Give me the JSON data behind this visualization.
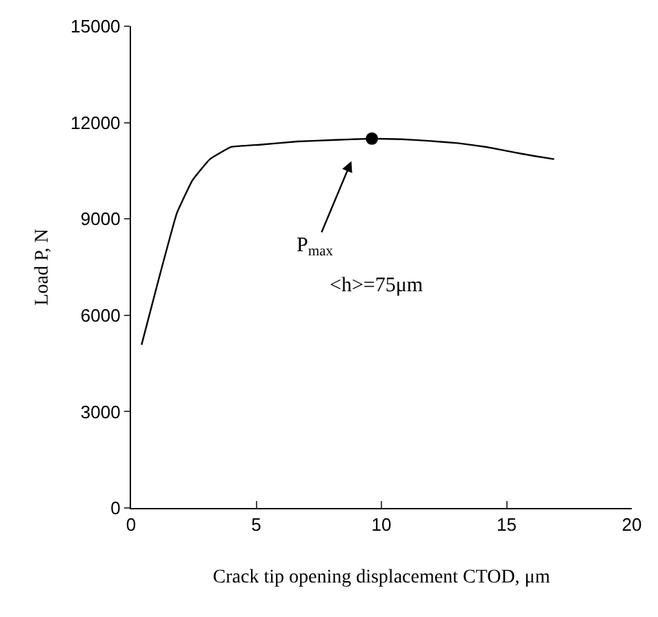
{
  "chart_data": {
    "type": "line",
    "xlabel": "Crack tip opening displacement CTOD, μm",
    "ylabel": "Load P, N",
    "series": [
      {
        "color": "#000000",
        "x": [
          0.42,
          1.08,
          1.83,
          2.45,
          3.15,
          4.0,
          5.13,
          6.64,
          8.15,
          9.62,
          10.8,
          11.9,
          13.05,
          14.19,
          15.32,
          16.1,
          16.9
        ],
        "values": [
          5080,
          7050,
          9180,
          10200,
          10860,
          11240,
          11310,
          11410,
          11460,
          11500,
          11480,
          11430,
          11360,
          11240,
          11070,
          10960,
          10860
        ]
      },
      {
        "type": "scatter",
        "color": "#000000",
        "marker": "circle",
        "x": [
          9.62
        ],
        "values": [
          11500
        ]
      }
    ],
    "annotations": [
      "P$_{max}$",
      "<h>=75μm"
    ],
    "xlim": [
      0,
      20
    ],
    "xticks": [
      0,
      5,
      10,
      15,
      20
    ],
    "ylim": [
      0,
      15000
    ],
    "yticks": [
      0,
      3000,
      6000,
      9000,
      12000,
      15000
    ],
    "legend": false
  }
}
